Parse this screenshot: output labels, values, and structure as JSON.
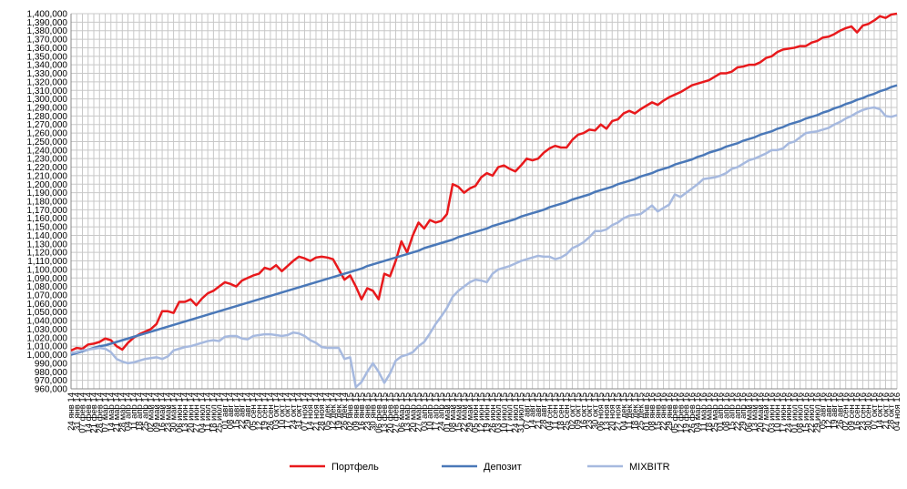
{
  "chart_data": {
    "type": "line",
    "categories": [
      "24 янв 14",
      "31 янв 14",
      "07 фев 14",
      "14 фев 14",
      "21 фев 14",
      "28 фев 14",
      "07 мар 14",
      "14 мар 14",
      "21 мар 14",
      "28 мар 14",
      "04 апр 14",
      "11 апр 14",
      "18 апр 14",
      "25 апр 14",
      "02 май 14",
      "09 май 14",
      "16 май 14",
      "23 май 14",
      "30 май 14",
      "06 июн 14",
      "13 июн 14",
      "20 июн 14",
      "27 июн 14",
      "04 июл 14",
      "11 июл 14",
      "18 июл 14",
      "25 июл 14",
      "01 авг 14",
      "08 авг 14",
      "15 авг 14",
      "22 авг 14",
      "29 авг 14",
      "05 сен 14",
      "12 сен 14",
      "19 сен 14",
      "26 сен 14",
      "03 окт 14",
      "10 окт 14",
      "17 окт 14",
      "24 окт 14",
      "31 окт 14",
      "07 ноя 14",
      "14 ноя 14",
      "21 ноя 14",
      "28 ноя 14",
      "05 дек 14",
      "12 дек 14",
      "19 дек 14",
      "26 дек 14",
      "02 янв 15",
      "09 янв 15",
      "16 янв 15",
      "23 янв 15",
      "30 янв 15",
      "06 фев 15",
      "13 фев 15",
      "20 фев 15",
      "27 фев 15",
      "06 мар 15",
      "13 мар 15",
      "20 мар 15",
      "27 мар 15",
      "03 апр 15",
      "10 апр 15",
      "17 апр 15",
      "24 апр 15",
      "01 май 15",
      "08 май 15",
      "15 май 15",
      "22 май 15",
      "29 май 15",
      "05 июн 15",
      "12 июн 15",
      "19 июн 15",
      "26 июн 15",
      "03 июл 15",
      "10 июл 15",
      "17 июл 15",
      "24 июл 15",
      "31 июл 15",
      "07 авг 15",
      "14 авг 15",
      "21 авг 15",
      "28 авг 15",
      "04 сен 15",
      "11 сен 15",
      "18 сен 15",
      "25 сен 15",
      "02 окт 15",
      "09 окт 15",
      "16 окт 15",
      "23 окт 15",
      "30 окт 15",
      "06 ноя 15",
      "13 ноя 15",
      "20 ноя 15",
      "27 ноя 15",
      "04 дек 15",
      "11 дек 15",
      "18 дек 15",
      "25 дек 15",
      "01 янв 16",
      "08 янв 16",
      "15 янв 16",
      "22 янв 16",
      "29 янв 16",
      "05 фев 16",
      "12 фев 16",
      "19 фев 16",
      "26 фев 16",
      "04 мар 16",
      "11 мар 16",
      "18 мар 16",
      "25 мар 16",
      "01 апр 16",
      "08 апр 16",
      "15 апр 16",
      "22 апр 16",
      "29 апр 16",
      "06 май 16",
      "13 май 16",
      "20 май 16",
      "27 май 16",
      "03 июн 16",
      "10 июн 16",
      "17 июн 16",
      "24 июн 16",
      "01 июл 16",
      "08 июл 16",
      "15 июл 16",
      "22 июл 16",
      "29 июл 16",
      "05 авг 16",
      "12 авг 16",
      "19 авг 16",
      "26 авг 16",
      "02 сен 16",
      "09 сен 16",
      "16 сен 16",
      "23 сен 16",
      "30 сен 16",
      "07 окт 16",
      "14 окт 16",
      "21 окт 16",
      "28 окт 16",
      "04 ноя 16"
    ],
    "series": [
      {
        "name": "Портфель",
        "color": "#e8191c",
        "values": [
          1005000,
          1008000,
          1007000,
          1012000,
          1013000,
          1015000,
          1019000,
          1017000,
          1010000,
          1006000,
          1014000,
          1020000,
          1024000,
          1027000,
          1030000,
          1036000,
          1051000,
          1051000,
          1049000,
          1062000,
          1062000,
          1065000,
          1058000,
          1066000,
          1072000,
          1075000,
          1080000,
          1085000,
          1083000,
          1080000,
          1087000,
          1090000,
          1093000,
          1095000,
          1102000,
          1100000,
          1105000,
          1098000,
          1104000,
          1110000,
          1115000,
          1113000,
          1110000,
          1114000,
          1115000,
          1114000,
          1112000,
          1100000,
          1088000,
          1093000,
          1080000,
          1065000,
          1078000,
          1075000,
          1065000,
          1095000,
          1092000,
          1110000,
          1133000,
          1120000,
          1140000,
          1155000,
          1148000,
          1158000,
          1155000,
          1157000,
          1165000,
          1200000,
          1197000,
          1190000,
          1195000,
          1198000,
          1208000,
          1213000,
          1210000,
          1220000,
          1222000,
          1218000,
          1215000,
          1222000,
          1230000,
          1228000,
          1230000,
          1237000,
          1242000,
          1245000,
          1243000,
          1243000,
          1252000,
          1258000,
          1260000,
          1264000,
          1263000,
          1270000,
          1265000,
          1274000,
          1276000,
          1283000,
          1286000,
          1283000,
          1288000,
          1292000,
          1296000,
          1293000,
          1298000,
          1302000,
          1305000,
          1308000,
          1312000,
          1316000,
          1318000,
          1320000,
          1322000,
          1326000,
          1330000,
          1330000,
          1332000,
          1337000,
          1338000,
          1340000,
          1340000,
          1343000,
          1348000,
          1350000,
          1355000,
          1358000,
          1359000,
          1360000,
          1362000,
          1362000,
          1366000,
          1368000,
          1372000,
          1373000,
          1376000,
          1380000,
          1383000,
          1385000,
          1378000,
          1386000,
          1388000,
          1392000,
          1397000,
          1395000,
          1399000,
          1400000
        ]
      },
      {
        "name": "Депозит",
        "color": "#4a78b8",
        "values": [
          1000000,
          1002000,
          1004000,
          1006000,
          1008000,
          1010000,
          1011000,
          1013000,
          1015000,
          1017000,
          1019000,
          1021000,
          1023000,
          1025000,
          1027000,
          1029000,
          1031000,
          1033000,
          1035000,
          1037000,
          1039000,
          1041000,
          1043000,
          1045000,
          1047000,
          1049000,
          1051000,
          1053000,
          1055000,
          1057000,
          1059000,
          1061000,
          1063000,
          1065000,
          1067000,
          1069000,
          1071000,
          1073000,
          1075000,
          1077000,
          1079000,
          1081000,
          1083000,
          1085000,
          1087000,
          1089000,
          1091000,
          1093000,
          1095000,
          1097000,
          1099000,
          1101000,
          1104000,
          1106000,
          1108000,
          1110000,
          1112000,
          1114000,
          1116000,
          1118000,
          1120000,
          1122000,
          1125000,
          1127000,
          1129000,
          1131000,
          1133000,
          1135000,
          1138000,
          1140000,
          1142000,
          1144000,
          1146000,
          1148000,
          1151000,
          1153000,
          1155000,
          1157000,
          1159000,
          1162000,
          1164000,
          1166000,
          1168000,
          1170000,
          1173000,
          1175000,
          1177000,
          1179000,
          1182000,
          1184000,
          1186000,
          1188000,
          1191000,
          1193000,
          1195000,
          1197000,
          1200000,
          1202000,
          1204000,
          1206000,
          1209000,
          1211000,
          1213000,
          1216000,
          1218000,
          1220000,
          1223000,
          1225000,
          1227000,
          1229000,
          1232000,
          1234000,
          1237000,
          1239000,
          1241000,
          1244000,
          1246000,
          1248000,
          1251000,
          1253000,
          1255000,
          1258000,
          1260000,
          1262000,
          1265000,
          1267000,
          1270000,
          1272000,
          1274000,
          1277000,
          1279000,
          1281000,
          1284000,
          1286000,
          1289000,
          1291000,
          1294000,
          1296000,
          1299000,
          1301000,
          1304000,
          1306000,
          1309000,
          1311000,
          1314000,
          1316000
        ]
      },
      {
        "name": "MIXBITR",
        "color": "#a6b9df",
        "values": [
          1002000,
          1003000,
          1005000,
          1006000,
          1007000,
          1008000,
          1007000,
          1003000,
          995000,
          992000,
          990000,
          991000,
          993000,
          995000,
          996000,
          997000,
          995000,
          998000,
          1005000,
          1007000,
          1009000,
          1010000,
          1012000,
          1014000,
          1016000,
          1017000,
          1016000,
          1021000,
          1022000,
          1022000,
          1019000,
          1018000,
          1022000,
          1023000,
          1024000,
          1024000,
          1023000,
          1022000,
          1023000,
          1026000,
          1025000,
          1022000,
          1017000,
          1014000,
          1009000,
          1008000,
          1008000,
          1008000,
          995000,
          997000,
          962000,
          968000,
          980000,
          990000,
          980000,
          967000,
          978000,
          993000,
          998000,
          1000000,
          1003000,
          1010000,
          1015000,
          1025000,
          1036000,
          1045000,
          1055000,
          1068000,
          1075000,
          1080000,
          1085000,
          1088000,
          1087000,
          1085000,
          1095000,
          1100000,
          1102000,
          1104000,
          1107000,
          1110000,
          1112000,
          1114000,
          1116000,
          1115000,
          1115000,
          1112000,
          1114000,
          1118000,
          1125000,
          1128000,
          1132000,
          1138000,
          1145000,
          1145000,
          1147000,
          1152000,
          1155000,
          1160000,
          1163000,
          1164000,
          1165000,
          1170000,
          1175000,
          1168000,
          1172000,
          1176000,
          1188000,
          1185000,
          1190000,
          1195000,
          1200000,
          1206000,
          1207000,
          1208000,
          1210000,
          1213000,
          1218000,
          1220000,
          1224000,
          1228000,
          1230000,
          1233000,
          1236000,
          1240000,
          1240000,
          1242000,
          1248000,
          1250000,
          1255000,
          1260000,
          1261000,
          1262000,
          1264000,
          1266000,
          1270000,
          1273000,
          1277000,
          1280000,
          1284000,
          1287000,
          1289000,
          1290000,
          1288000,
          1280000,
          1279000,
          1281000
        ]
      }
    ],
    "ylim": [
      960000,
      1400000
    ],
    "yticks": [
      {
        "value": 960000,
        "label": "960,000"
      },
      {
        "value": 970000,
        "label": "970,000"
      },
      {
        "value": 980000,
        "label": "980,000"
      },
      {
        "value": 990000,
        "label": "990,000"
      },
      {
        "value": 1000000,
        "label": "1,000,000"
      },
      {
        "value": 1010000,
        "label": "1,010,000"
      },
      {
        "value": 1020000,
        "label": "1,020,000"
      },
      {
        "value": 1030000,
        "label": "1,030,000"
      },
      {
        "value": 1040000,
        "label": "1,040,000"
      },
      {
        "value": 1050000,
        "label": "1,050,000"
      },
      {
        "value": 1060000,
        "label": "1,060,000"
      },
      {
        "value": 1070000,
        "label": "1,070,000"
      },
      {
        "value": 1080000,
        "label": "1,080,000"
      },
      {
        "value": 1090000,
        "label": "1,090,000"
      },
      {
        "value": 1100000,
        "label": "1,100,000"
      },
      {
        "value": 1110000,
        "label": "1,110,000"
      },
      {
        "value": 1120000,
        "label": "1,120,000"
      },
      {
        "value": 1130000,
        "label": "1,130,000"
      },
      {
        "value": 1140000,
        "label": "1,140,000"
      },
      {
        "value": 1150000,
        "label": "1,150,000"
      },
      {
        "value": 1160000,
        "label": "1,160,000"
      },
      {
        "value": 1170000,
        "label": "1,170,000"
      },
      {
        "value": 1180000,
        "label": "1,180,000"
      },
      {
        "value": 1190000,
        "label": "1,190,000"
      },
      {
        "value": 1200000,
        "label": "1,200,000"
      },
      {
        "value": 1210000,
        "label": "1,210,000"
      },
      {
        "value": 1220000,
        "label": "1,220,000"
      },
      {
        "value": 1230000,
        "label": "1,230,000"
      },
      {
        "value": 1240000,
        "label": "1,240,000"
      },
      {
        "value": 1250000,
        "label": "1,250,000"
      },
      {
        "value": 1260000,
        "label": "1,260,000"
      },
      {
        "value": 1270000,
        "label": "1,270,000"
      },
      {
        "value": 1280000,
        "label": "1,280,000"
      },
      {
        "value": 1290000,
        "label": "1,290,000"
      },
      {
        "value": 1300000,
        "label": "1,300,000"
      },
      {
        "value": 1310000,
        "label": "1,310,000"
      },
      {
        "value": 1320000,
        "label": "1,320,000"
      },
      {
        "value": 1330000,
        "label": "1,330,000"
      },
      {
        "value": 1340000,
        "label": "1,340,000"
      },
      {
        "value": 1350000,
        "label": "1,350,000"
      },
      {
        "value": 1360000,
        "label": "1,360,000"
      },
      {
        "value": 1370000,
        "label": "1,370,000"
      },
      {
        "value": 1380000,
        "label": "1,380,000"
      },
      {
        "value": 1390000,
        "label": "1,390,000"
      },
      {
        "value": 1400000,
        "label": "1,400,000"
      }
    ],
    "grid": true,
    "legend": "bottom"
  }
}
